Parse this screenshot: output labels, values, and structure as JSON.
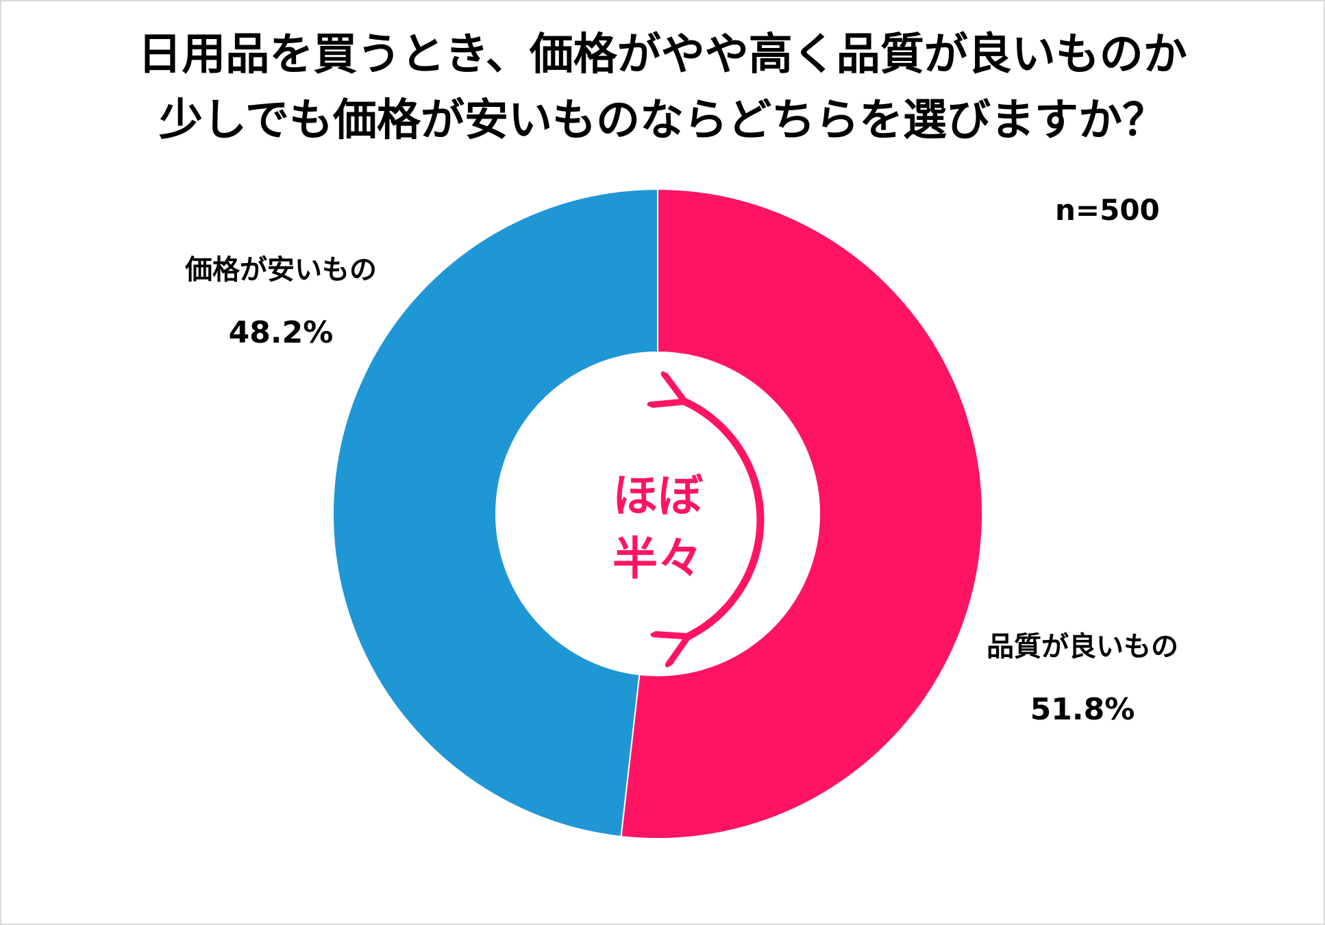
{
  "title_lines": [
    "日用品を買うとき、価格がやや高く品質が良いものか",
    "少しでも価格が安いものならどちらを選びますか？"
  ],
  "sample_size": "n=500",
  "center_note": [
    "ほぼ",
    "半々"
  ],
  "colors": {
    "quality": "#ff1463",
    "cheap": "#1f97d5",
    "annotation": "#ff1463"
  },
  "chart_data": {
    "type": "pie",
    "title": "日用品を買うとき、価格がやや高く品質が良いものか 少しでも価格が安いものならどちらを選びますか？",
    "categories": [
      "品質が良いもの",
      "価格が安いもの"
    ],
    "values": [
      51.8,
      48.2
    ],
    "unit": "%",
    "labels": [
      {
        "name": "価格が安いもの",
        "value": "48.2%"
      },
      {
        "name": "品質が良いもの",
        "value": "51.8%"
      }
    ],
    "legend": "none"
  }
}
